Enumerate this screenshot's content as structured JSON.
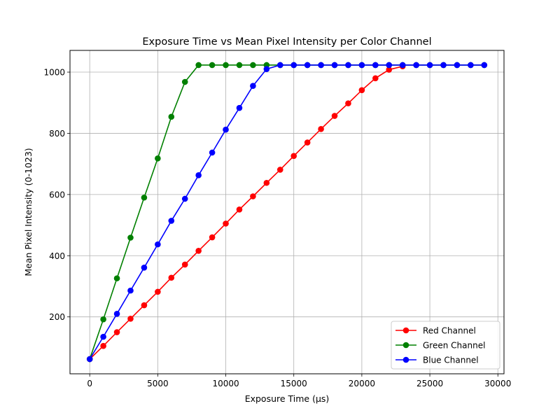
{
  "chart_data": {
    "type": "line",
    "title": "Exposure Time vs Mean Pixel Intensity per Color Channel",
    "xlabel": "Exposure Time (µs)",
    "ylabel": "Mean Pixel Intensity (0-1023)",
    "xlim": [
      -1450,
      30450
    ],
    "ylim": [
      14,
      1071
    ],
    "xticks": [
      0,
      5000,
      10000,
      15000,
      20000,
      25000,
      30000
    ],
    "yticks": [
      200,
      400,
      600,
      800,
      1000
    ],
    "grid": true,
    "legend_position": "lower right",
    "series": [
      {
        "name": "Red Channel",
        "color": "#ff0000",
        "x": [
          0,
          1000,
          2000,
          3000,
          4000,
          5000,
          6000,
          7000,
          8000,
          9000,
          10000,
          11000,
          12000,
          13000,
          14000,
          15000,
          16000,
          17000,
          18000,
          19000,
          20000,
          21000,
          22000,
          23000
        ],
        "y": [
          62,
          105,
          150,
          194,
          238,
          282,
          328,
          371,
          416,
          460,
          505,
          551,
          594,
          638,
          681,
          726,
          770,
          814,
          857,
          898,
          941,
          980,
          1008,
          1019
        ]
      },
      {
        "name": "Green Channel",
        "color": "#008000",
        "x": [
          0,
          1000,
          2000,
          3000,
          4000,
          5000,
          6000,
          7000,
          8000,
          9000,
          10000,
          11000,
          12000,
          13000,
          14000,
          15000,
          16000,
          17000,
          18000,
          19000,
          20000,
          21000,
          22000,
          23000,
          24000,
          25000,
          26000,
          27000,
          28000,
          29000
        ],
        "y": [
          62,
          192,
          326,
          459,
          590,
          718,
          854,
          968,
          1023,
          1023,
          1023,
          1023,
          1023,
          1023,
          1023,
          1023,
          1023,
          1023,
          1023,
          1023,
          1023,
          1023,
          1023,
          1023,
          1023,
          1023,
          1023,
          1023,
          1023,
          1023
        ]
      },
      {
        "name": "Blue Channel",
        "color": "#0000ff",
        "x": [
          0,
          1000,
          2000,
          3000,
          4000,
          5000,
          6000,
          7000,
          8000,
          9000,
          10000,
          11000,
          12000,
          13000,
          14000,
          15000,
          16000,
          17000,
          18000,
          19000,
          20000,
          21000,
          22000,
          23000,
          24000,
          25000,
          26000,
          27000,
          28000,
          29000
        ],
        "y": [
          62,
          135,
          210,
          286,
          361,
          437,
          514,
          586,
          663,
          737,
          812,
          883,
          955,
          1010,
          1023,
          1023,
          1023,
          1023,
          1023,
          1023,
          1023,
          1023,
          1023,
          1023,
          1023,
          1023,
          1023,
          1023,
          1023,
          1023
        ]
      }
    ]
  }
}
